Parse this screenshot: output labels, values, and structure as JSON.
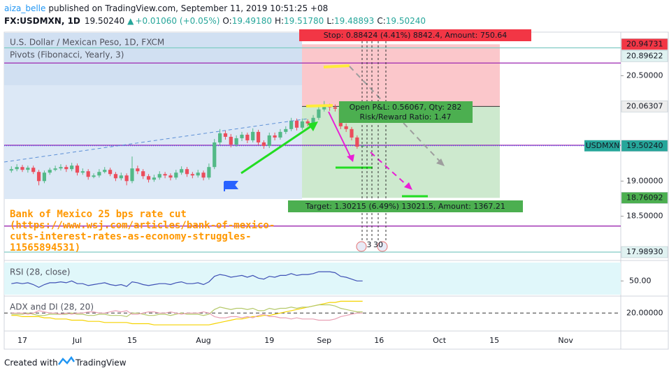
{
  "header": {
    "author": "aiza_belle",
    "published": "published on TradingView.com, September 11, 2019 10:51:25 +08",
    "symbol": "FX:USDMXN, 1D",
    "last": "19.50240",
    "change": "+0.01060 (+0.05%)",
    "ohlc": [
      {
        "label": "O:",
        "value": "19.49180"
      },
      {
        "label": "H:",
        "value": "19.51780"
      },
      {
        "label": "L:",
        "value": "19.48893"
      },
      {
        "label": "C:",
        "value": "19.50240"
      }
    ]
  },
  "footer": {
    "created": "Created with",
    "brand": "TradingView"
  },
  "chart_data": [
    {
      "type": "candlestick",
      "title": "U.S. Dollar / Mexican Peso, 1D, FXCM",
      "subtitle": "Pivots (Fibonacci, Yearly, 3)",
      "categories": [
        null,
        null,
        "17",
        null,
        null,
        null,
        null,
        null,
        null,
        null,
        null,
        null,
        "Jul",
        null,
        null,
        null,
        null,
        null,
        null,
        null,
        null,
        null,
        "15",
        null,
        null,
        null,
        null,
        null,
        null,
        null,
        null,
        null,
        null,
        null,
        null,
        "Aug",
        null,
        null,
        null,
        null,
        null,
        null,
        null,
        null,
        null,
        null,
        null,
        "19",
        null,
        null,
        null,
        null,
        null,
        null,
        null,
        null,
        null,
        "Sep",
        null,
        null,
        null,
        null,
        null,
        null,
        null,
        null,
        null,
        "16",
        null,
        null,
        null,
        null,
        null,
        null,
        null,
        null,
        null,
        null,
        "Oct",
        null,
        null,
        null,
        null,
        null,
        null,
        null,
        null,
        null,
        "15",
        null,
        null,
        null,
        null,
        null,
        null,
        null,
        null,
        null,
        null,
        null,
        null,
        "Nov"
      ],
      "open": [
        19.15,
        19.17,
        19.2,
        19.16,
        19.19,
        19.13,
        19.0,
        19.12,
        19.16,
        19.18,
        19.2,
        19.17,
        19.22,
        19.12,
        19.14,
        19.06,
        19.08,
        19.13,
        19.16,
        19.1,
        19.04,
        19.08,
        19.0,
        19.18,
        19.14,
        19.07,
        19.02,
        19.05,
        19.1,
        19.08,
        19.05,
        19.12,
        19.17,
        19.1,
        19.08,
        19.12,
        19.05,
        19.2,
        19.55,
        19.68,
        19.63,
        19.52,
        19.61,
        19.66,
        19.58,
        19.7,
        19.55,
        19.5,
        19.65,
        19.62,
        19.7,
        19.74,
        19.86,
        19.76,
        19.85,
        19.82,
        19.9,
        20.02,
        20.06,
        20.05,
        20.03,
        19.78,
        19.74,
        19.62,
        19.4918,
        null,
        null,
        null,
        null,
        null,
        null,
        null,
        null,
        null,
        null,
        null,
        null,
        null,
        null,
        null,
        null,
        null,
        null,
        null,
        null,
        null,
        null,
        null,
        null,
        null,
        null,
        null,
        null,
        null,
        null,
        null,
        null,
        null,
        null,
        null,
        null,
        null
      ],
      "high": [
        19.21,
        19.24,
        19.23,
        19.22,
        19.22,
        19.16,
        19.15,
        19.19,
        19.22,
        19.24,
        19.23,
        19.26,
        19.25,
        19.18,
        19.17,
        19.11,
        19.17,
        19.2,
        19.19,
        19.13,
        19.12,
        19.11,
        19.35,
        19.22,
        19.17,
        19.1,
        19.09,
        19.14,
        19.13,
        19.11,
        19.16,
        19.21,
        19.2,
        19.13,
        19.16,
        19.15,
        19.25,
        19.6,
        19.74,
        19.72,
        19.67,
        19.65,
        19.7,
        19.69,
        19.75,
        19.73,
        19.58,
        19.69,
        19.69,
        19.74,
        19.78,
        19.9,
        19.89,
        19.89,
        19.88,
        19.94,
        20.06,
        20.14,
        20.1,
        20.09,
        20.06,
        19.82,
        19.77,
        19.65,
        19.5178,
        null,
        null,
        null,
        null,
        null,
        null,
        null,
        null,
        null,
        null,
        null,
        null,
        null,
        null,
        null,
        null,
        null,
        null,
        null,
        null,
        null,
        null,
        null,
        null,
        null,
        null,
        null,
        null,
        null,
        null,
        null,
        null,
        null,
        null,
        null,
        null,
        null
      ],
      "low": [
        19.12,
        19.14,
        19.13,
        19.12,
        19.1,
        18.94,
        18.97,
        19.09,
        19.14,
        19.15,
        19.13,
        19.14,
        19.08,
        19.09,
        19.02,
        19.04,
        19.05,
        19.11,
        19.07,
        19.0,
        19.01,
        18.94,
        18.97,
        19.1,
        19.03,
        18.98,
        18.99,
        19.02,
        19.04,
        19.01,
        19.02,
        19.09,
        19.06,
        19.04,
        19.05,
        19.01,
        19.02,
        19.17,
        19.51,
        19.59,
        19.48,
        19.49,
        19.57,
        19.54,
        19.55,
        19.51,
        19.46,
        19.47,
        19.58,
        19.59,
        19.67,
        19.71,
        19.72,
        19.73,
        19.78,
        19.79,
        19.87,
        19.99,
        20.0,
        19.99,
        19.74,
        19.7,
        19.58,
        19.46,
        19.48893,
        null,
        null,
        null,
        null,
        null,
        null,
        null,
        null,
        null,
        null,
        null,
        null,
        null,
        null,
        null,
        null,
        null,
        null,
        null,
        null,
        null,
        null,
        null,
        null,
        null,
        null,
        null,
        null,
        null,
        null,
        null,
        null,
        null,
        null,
        null,
        null,
        null
      ],
      "close": [
        19.17,
        19.2,
        19.16,
        19.19,
        19.13,
        19.0,
        19.12,
        19.16,
        19.18,
        19.2,
        19.17,
        19.22,
        19.12,
        19.14,
        19.06,
        19.08,
        19.13,
        19.16,
        19.1,
        19.04,
        19.08,
        19.0,
        19.18,
        19.14,
        19.07,
        19.02,
        19.05,
        19.1,
        19.08,
        19.05,
        19.12,
        19.17,
        19.1,
        19.08,
        19.12,
        19.05,
        19.2,
        19.55,
        19.68,
        19.63,
        19.52,
        19.61,
        19.66,
        19.58,
        19.7,
        19.55,
        19.5,
        19.65,
        19.62,
        19.7,
        19.74,
        19.86,
        19.76,
        19.85,
        19.82,
        19.9,
        20.02,
        20.06,
        20.05,
        20.03,
        19.78,
        19.74,
        19.62,
        19.49,
        19.5024,
        null,
        null,
        null,
        null,
        null,
        null,
        null,
        null,
        null,
        null,
        null,
        null,
        null,
        null,
        null,
        null,
        null,
        null,
        null,
        null,
        null,
        null,
        null,
        null,
        null,
        null,
        null,
        null,
        null,
        null,
        null,
        null,
        null,
        null,
        null,
        null,
        null
      ],
      "up_color": "#53b987",
      "down_color": "#eb4d5c",
      "ylim": [
        17.88,
        21.11
      ],
      "yticks": [
        {
          "value": 20.5,
          "label": "20.50000"
        },
        {
          "value": 19,
          "label": "19.00000"
        },
        {
          "value": 18.5,
          "label": "18.50000"
        }
      ],
      "pivots": [
        {
          "value": 20.89622,
          "color": "#80cbc4"
        },
        {
          "value": 20.68,
          "color": "#9c27b0"
        },
        {
          "value": 19.51,
          "color": "#9c27b0"
        },
        {
          "value": 18.36,
          "color": "#9c27b0"
        },
        {
          "value": 17.9893,
          "color": "#80cbc4"
        }
      ],
      "price_tags": [
        {
          "value": 20.94731,
          "label": "20.94731",
          "color": "#f23645",
          "text_color": "#ffffff"
        },
        {
          "value": 20.89622,
          "label": "20.89622",
          "color": "#e0f2f1",
          "text_color": "#131722"
        },
        {
          "value": 20.06307,
          "label": "20.06307",
          "color": "#eeeeee",
          "text_color": "#131722"
        },
        {
          "value": 19.5024,
          "label": "19.50240",
          "name": "USDMXN",
          "color": "#26a69a",
          "text_color": "#ffffff"
        },
        {
          "value": 18.76092,
          "label": "18.76092",
          "color": "#4caf50",
          "text_color": "#ffffff"
        },
        {
          "value": 17.9893,
          "label": "17.98930",
          "color": "#e0f2f1",
          "text_color": "#131722"
        }
      ],
      "position": {
        "entry": 20.06307,
        "stop": 20.94731,
        "target": 18.76092,
        "stop_color": "#f23645",
        "target_color": "#4caf50",
        "stop_label": "Stop: 0.88424 (4.41%) 8842.4, Amount: 750.64",
        "pnl_label": "Open P&L: 0.56067, Qty: 282",
        "rr_label": "Risk/Reward Ratio: 1.47",
        "target_label": "Target: 1.30215 (6.49%) 13021.5, Amount: 1367.21"
      },
      "annotation": [
        "Bank of Mexico 25 bps rate cut",
        "(https://www.wsj.com/articles/bank-of-mexico-",
        "cuts-interest-rates-as-economy-struggles-",
        "11565894531)"
      ],
      "events": [
        "3",
        "30"
      ]
    },
    {
      "type": "line",
      "title": "RSI (28, close)",
      "color": "#3f51b5",
      "band_color": "#e0f7fa",
      "values": [
        47,
        48,
        47,
        48,
        46,
        43,
        46,
        48,
        48,
        49,
        48,
        50,
        47,
        47,
        45,
        46,
        47,
        48,
        46,
        45,
        46,
        44,
        49,
        48,
        46,
        45,
        46,
        47,
        47,
        46,
        48,
        49,
        47,
        47,
        48,
        46,
        49,
        55,
        57,
        56,
        54,
        55,
        56,
        54,
        56,
        53,
        52,
        55,
        54,
        56,
        56,
        58,
        56,
        57,
        57,
        58,
        60,
        60,
        60,
        59,
        55,
        54,
        52,
        50,
        50,
        null,
        null,
        null,
        null,
        null,
        null,
        null,
        null,
        null,
        null,
        null,
        null,
        null,
        null,
        null,
        null,
        null,
        null,
        null,
        null,
        null,
        null,
        null,
        null,
        null,
        null,
        null,
        null,
        null,
        null,
        null,
        null,
        null,
        null,
        null,
        null,
        null
      ],
      "ylim": [
        35,
        70
      ],
      "yticks": [
        {
          "value": 50,
          "label": "50.00"
        }
      ]
    },
    {
      "type": "multiline",
      "title": "ADX and DI (28, 20)",
      "series": [
        {
          "color": "#f5d300",
          "values": [
            18,
            18,
            17,
            17,
            17,
            17,
            16,
            16,
            15,
            15,
            15,
            14,
            14,
            14,
            13,
            13,
            13,
            12,
            12,
            12,
            12,
            12,
            11,
            11,
            11,
            11,
            10,
            10,
            10,
            10,
            10,
            10,
            10,
            10,
            10,
            10,
            10,
            11,
            12,
            13,
            14,
            15,
            15,
            16,
            17,
            17,
            18,
            18,
            19,
            20,
            21,
            22,
            23,
            24,
            25,
            26,
            27,
            28,
            29,
            29,
            30,
            30,
            30,
            30,
            30,
            null,
            null,
            null,
            null,
            null,
            null,
            null,
            null,
            null,
            null,
            null,
            null,
            null,
            null,
            null,
            null,
            null,
            null,
            null,
            null,
            null,
            null,
            null,
            null,
            null,
            null,
            null,
            null,
            null,
            null,
            null,
            null,
            null,
            null,
            null,
            null,
            null
          ]
        },
        {
          "color": "#b5c96a",
          "values": [
            19,
            19,
            19,
            20,
            19,
            18,
            18,
            19,
            19,
            19,
            19,
            20,
            19,
            19,
            18,
            18,
            19,
            19,
            18,
            18,
            18,
            17,
            20,
            20,
            19,
            18,
            18,
            19,
            19,
            18,
            19,
            20,
            19,
            19,
            19,
            18,
            19,
            23,
            25,
            24,
            23,
            24,
            24,
            23,
            24,
            22,
            22,
            24,
            23,
            24,
            24,
            25,
            24,
            25,
            25,
            26,
            27,
            27,
            27,
            26,
            24,
            23,
            22,
            21,
            21,
            null,
            null,
            null,
            null,
            null,
            null,
            null,
            null,
            null,
            null,
            null,
            null,
            null,
            null,
            null,
            null,
            null,
            null,
            null,
            null,
            null,
            null,
            null,
            null,
            null,
            null,
            null,
            null,
            null,
            null,
            null,
            null,
            null,
            null,
            null,
            null,
            null
          ]
        },
        {
          "color": "#e8a0b4",
          "values": [
            20,
            20,
            20,
            19,
            20,
            22,
            21,
            20,
            20,
            19,
            20,
            19,
            20,
            20,
            21,
            21,
            20,
            20,
            21,
            22,
            21,
            22,
            19,
            19,
            20,
            21,
            21,
            20,
            20,
            21,
            20,
            19,
            20,
            20,
            20,
            21,
            20,
            17,
            16,
            16,
            17,
            17,
            16,
            17,
            16,
            18,
            19,
            17,
            17,
            16,
            16,
            15,
            16,
            15,
            15,
            15,
            14,
            14,
            14,
            15,
            17,
            18,
            19,
            20,
            20,
            null,
            null,
            null,
            null,
            null,
            null,
            null,
            null,
            null,
            null,
            null,
            null,
            null,
            null,
            null,
            null,
            null,
            null,
            null,
            null,
            null,
            null,
            null,
            null,
            null,
            null,
            null,
            null,
            null,
            null,
            null,
            null,
            null,
            null,
            null,
            null,
            null
          ]
        }
      ],
      "ylim": [
        6,
        32
      ],
      "yticks": [
        {
          "value": 20,
          "label": "20.00000"
        }
      ]
    }
  ]
}
